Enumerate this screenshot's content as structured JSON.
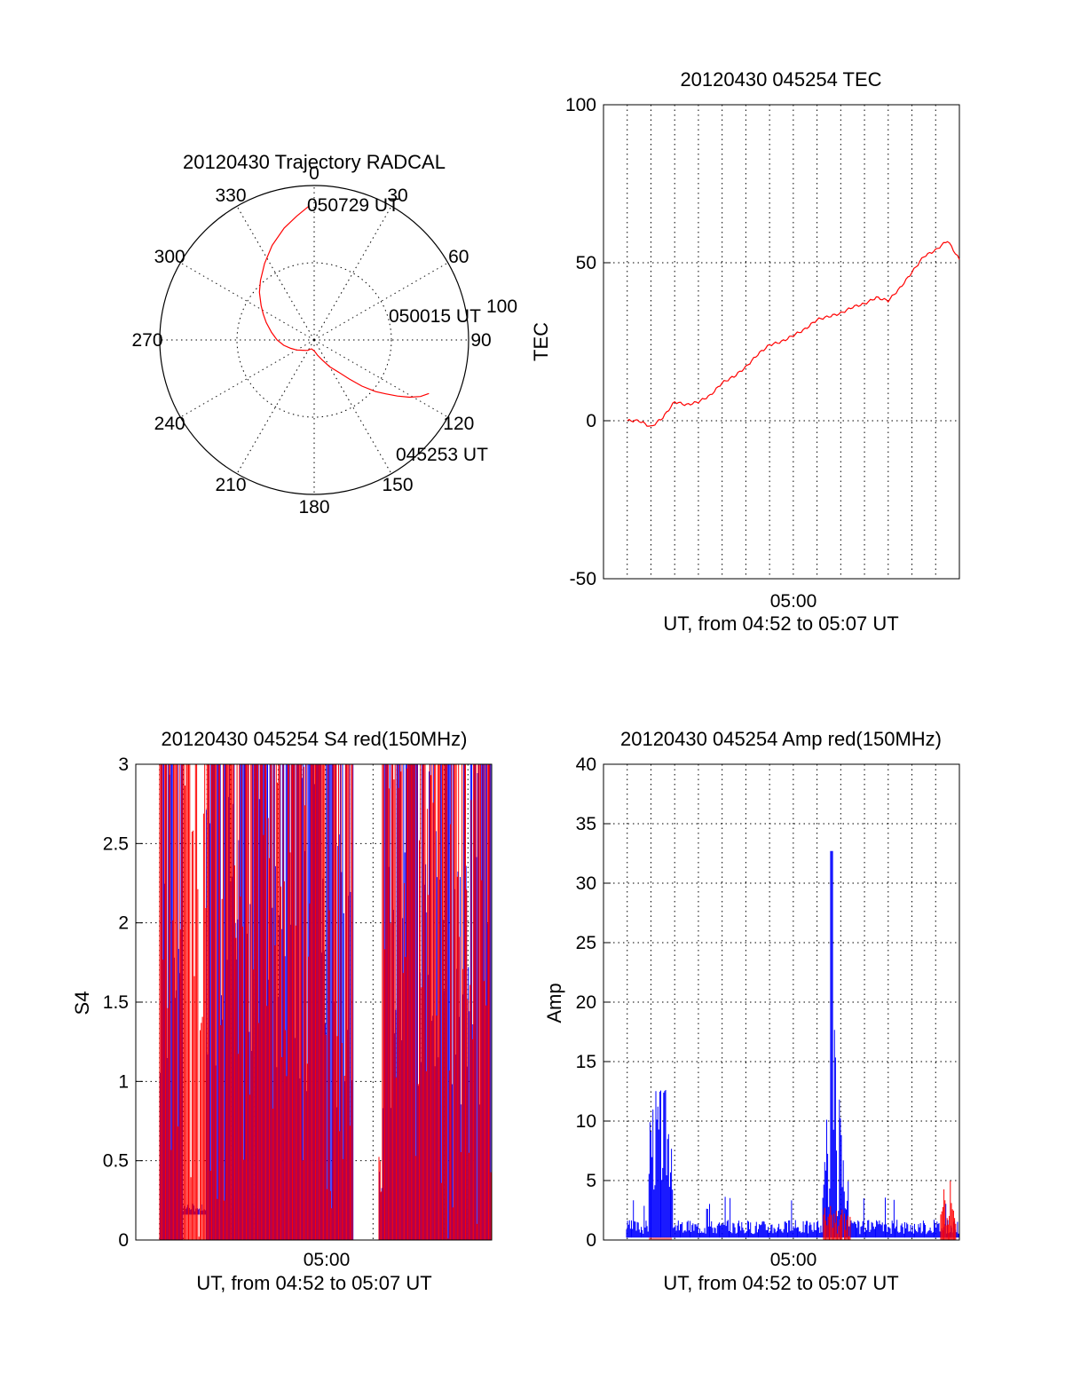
{
  "chart_data": [
    {
      "type": "polar",
      "title": "20120430 Trajectory RADCAL",
      "angle_labels": [
        "0",
        "30",
        "60",
        "90",
        "120",
        "150",
        "180",
        "210",
        "240",
        "270",
        "300",
        "330"
      ],
      "radial_label": "100",
      "rmax": 100,
      "grid": true,
      "annotations": [
        "050729 UT",
        "050015 UT",
        "045253 UT"
      ],
      "series": [
        {
          "color": "#ff0000",
          "points": [
            [
              115,
              82
            ],
            [
              118,
              78
            ],
            [
              121,
              72
            ],
            [
              124,
              65
            ],
            [
              127,
              58
            ],
            [
              130,
              52
            ],
            [
              134,
              43
            ],
            [
              138,
              34
            ],
            [
              143,
              26
            ],
            [
              150,
              20
            ],
            [
              158,
              14
            ],
            [
              168,
              10
            ],
            [
              180,
              7
            ],
            [
              197,
              6
            ],
            [
              212,
              8
            ],
            [
              228,
              10
            ],
            [
              240,
              13
            ],
            [
              250,
              16
            ],
            [
              260,
              20
            ],
            [
              270,
              24
            ],
            [
              280,
              28
            ],
            [
              290,
              33
            ],
            [
              297,
              37
            ],
            [
              303,
              41
            ],
            [
              311,
              47
            ],
            [
              318,
              52
            ],
            [
              327,
              59
            ],
            [
              336,
              67
            ],
            [
              345,
              75
            ],
            [
              352,
              81
            ],
            [
              358,
              87
            ]
          ]
        }
      ]
    },
    {
      "type": "line",
      "title": "20120430 045254 TEC",
      "xlabel": "UT, from 04:52 to 05:07 UT",
      "ylabel": "TEC",
      "xlim": [
        "04:52",
        "05:07"
      ],
      "ylim": [
        -50,
        100
      ],
      "yticks": [
        "-50",
        "0",
        "50",
        "100"
      ],
      "xtick_labels": [
        {
          "x": "05:00",
          "label": "05:00"
        }
      ],
      "grid": true,
      "series": [
        {
          "color": "#ff0000",
          "x": [
            "04:53:00",
            "04:53:30",
            "04:54:00",
            "04:54:30",
            "04:55:00",
            "04:55:30",
            "04:56:00",
            "04:56:30",
            "04:57:00",
            "04:57:30",
            "04:58:00",
            "04:58:30",
            "04:59:00",
            "04:59:30",
            "05:00:00",
            "05:00:30",
            "05:01:00",
            "05:01:30",
            "05:02:00",
            "05:02:30",
            "05:03:00",
            "05:03:30",
            "05:04:00",
            "05:04:30",
            "05:05:00",
            "05:05:30",
            "05:06:00",
            "05:06:30",
            "05:07:00"
          ],
          "values": [
            0,
            0,
            -2,
            1,
            6,
            5,
            6,
            8,
            12,
            14,
            17,
            21,
            24,
            25,
            27,
            29,
            32,
            33,
            34,
            36,
            37,
            39,
            38,
            42,
            47,
            52,
            54,
            57,
            51
          ]
        }
      ]
    },
    {
      "type": "line",
      "title": "20120430 045254 S4 red(150MHz)",
      "xlabel": "UT, from 04:52 to 05:07 UT",
      "ylabel": "S4",
      "xlim": [
        "04:52",
        "05:07"
      ],
      "ylim": [
        0,
        3
      ],
      "yticks": [
        "0",
        "0.5",
        "1",
        "1.5",
        "2",
        "2.5",
        "3"
      ],
      "xtick_labels": [
        {
          "x": "05:00",
          "label": "05:00"
        }
      ],
      "grid": true,
      "series": [
        {
          "color": "#0000ff",
          "description_values": [
            [
              0.0,
              "04:52:20"
            ],
            [
              0.2,
              "04:53:10"
            ],
            [
              1.4,
              "04:55:00"
            ],
            [
              3.0,
              "04:58:00"
            ],
            [
              0.35,
              "05:02:00"
            ],
            [
              2.7,
              "05:04:00"
            ],
            [
              1.6,
              "05:07:00"
            ]
          ]
        },
        {
          "color": "#ff0000",
          "description_values": [
            [
              0.0,
              "04:52:20"
            ],
            [
              3.0,
              "04:54:00"
            ],
            [
              0.0,
              "04:57:00"
            ],
            [
              0.4,
              "05:02:00"
            ],
            [
              3.0,
              "05:04:00"
            ],
            [
              1.0,
              "05:07:00"
            ]
          ]
        }
      ]
    },
    {
      "type": "line",
      "title": "20120430 045254 Amp red(150MHz)",
      "xlabel": "UT, from 04:52 to 05:07 UT",
      "ylabel": "Amp",
      "xlim": [
        "04:52",
        "05:07"
      ],
      "ylim": [
        0,
        40
      ],
      "yticks": [
        "0",
        "5",
        "10",
        "15",
        "20",
        "25",
        "30",
        "35",
        "40"
      ],
      "xtick_labels": [
        {
          "x": "05:00",
          "label": "05:00"
        }
      ],
      "grid": true,
      "series": [
        {
          "color": "#0000ff",
          "x": [
            "04:53:00",
            "04:54:00",
            "04:55:00",
            "04:56:00",
            "04:58:00",
            "05:00:00",
            "05:01:00",
            "05:01:30",
            "05:02:00",
            "05:03:00",
            "05:05:00",
            "05:07:00"
          ],
          "values": [
            1,
            1,
            12,
            1,
            0.8,
            0.8,
            3,
            33,
            15,
            1,
            1,
            1
          ]
        },
        {
          "color": "#ff0000",
          "x": [
            "04:54:00",
            "04:55:00",
            "05:01:00",
            "05:02:00",
            "05:06:00",
            "05:06:30",
            "05:07:00"
          ],
          "values": [
            0.1,
            0.1,
            1.5,
            3,
            0.1,
            7,
            0.1
          ]
        }
      ]
    }
  ]
}
